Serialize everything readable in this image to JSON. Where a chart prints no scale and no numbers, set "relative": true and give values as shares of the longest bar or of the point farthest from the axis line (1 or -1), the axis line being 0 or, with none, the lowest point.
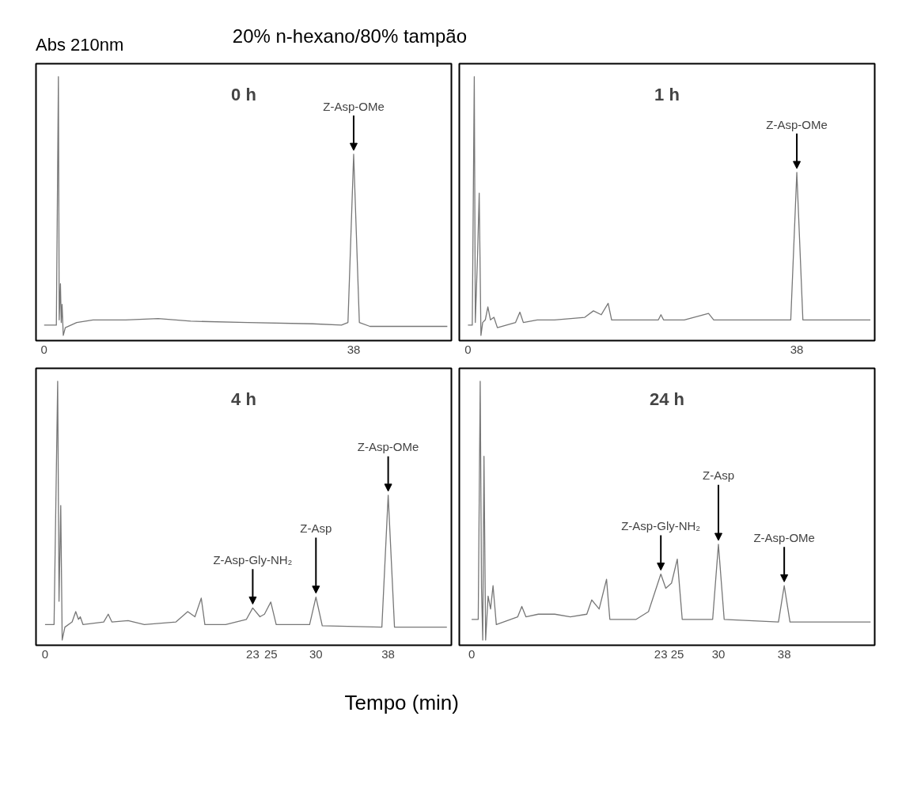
{
  "chart_data": [
    {
      "type": "line",
      "title": "0 h",
      "subtitle": "20% n-hexano/80% tampão",
      "ylabel": "Abs 210nm",
      "relative": true,
      "tick_labels": "x",
      "grid": false,
      "xlim": [
        -1,
        50
      ],
      "xticks": [
        0,
        38
      ],
      "color": "#777777",
      "x": [
        0,
        1.5,
        1.75,
        1.85,
        2.0,
        2.1,
        2.2,
        2.35,
        2.6,
        4,
        6,
        10,
        14,
        18,
        25,
        33,
        36.5,
        37.3,
        38,
        38.7,
        40,
        45,
        49.5
      ],
      "values": [
        0.04,
        0.04,
        1.0,
        0.06,
        0.2,
        0.05,
        0.12,
        0.0,
        0.03,
        0.05,
        0.06,
        0.06,
        0.065,
        0.055,
        0.05,
        0.045,
        0.04,
        0.05,
        0.7,
        0.05,
        0.035,
        0.035,
        0.035
      ],
      "annotations": [
        {
          "text": "Z-Asp-OMe",
          "x": 38,
          "y": 0.7
        }
      ]
    },
    {
      "type": "line",
      "title": "1 h",
      "relative": true,
      "tick_labels": "x",
      "grid": false,
      "xlim": [
        -1,
        47
      ],
      "xticks": [
        0,
        38
      ],
      "color": "#777777",
      "x": [
        0,
        0.5,
        0.73,
        0.85,
        1.1,
        1.3,
        1.5,
        1.7,
        2.0,
        2.3,
        2.6,
        3.0,
        3.4,
        5.5,
        6.0,
        6.4,
        8,
        10,
        13.5,
        14.5,
        15.4,
        16.2,
        16.6,
        19,
        22.0,
        22.3,
        22.6,
        25,
        27.8,
        28.4,
        33,
        37.3,
        38,
        38.7,
        41,
        46.5
      ],
      "values": [
        0.04,
        0.04,
        1.0,
        0.05,
        0.3,
        0.55,
        0.0,
        0.05,
        0.06,
        0.11,
        0.06,
        0.07,
        0.03,
        0.05,
        0.09,
        0.05,
        0.06,
        0.06,
        0.07,
        0.095,
        0.08,
        0.124,
        0.06,
        0.06,
        0.06,
        0.08,
        0.06,
        0.06,
        0.085,
        0.06,
        0.06,
        0.06,
        0.63,
        0.06,
        0.06,
        0.06
      ],
      "annotations": [
        {
          "text": "Z-Asp-OMe",
          "x": 38,
          "y": 0.63
        }
      ]
    },
    {
      "type": "line",
      "title": "4 h",
      "xlabel": "Tempo (min)",
      "relative": true,
      "tick_labels": "x",
      "grid": false,
      "xlim": [
        -1,
        45
      ],
      "xticks": [
        0,
        23,
        25,
        30,
        38
      ],
      "color": "#777777",
      "x": [
        0,
        1.0,
        1.4,
        1.55,
        1.74,
        1.9,
        2.2,
        3.0,
        3.4,
        3.7,
        3.9,
        4.2,
        6.5,
        7.0,
        7.4,
        9.2,
        11,
        14.5,
        15.8,
        16.6,
        17.3,
        17.7,
        20,
        22.3,
        23,
        23.8,
        24.3,
        25,
        25.6,
        29.3,
        30,
        30.7,
        37.3,
        38,
        38.7,
        44.5
      ],
      "values": [
        0.06,
        0.06,
        1.0,
        0.15,
        0.52,
        0.0,
        0.05,
        0.07,
        0.11,
        0.08,
        0.09,
        0.06,
        0.07,
        0.1,
        0.07,
        0.075,
        0.06,
        0.07,
        0.11,
        0.09,
        0.162,
        0.06,
        0.06,
        0.08,
        0.124,
        0.09,
        0.1,
        0.147,
        0.06,
        0.06,
        0.166,
        0.055,
        0.05,
        0.56,
        0.05,
        0.05
      ],
      "annotations": [
        {
          "text": "Z-Asp-Gly-NH₂",
          "x": 23,
          "y": 0.124
        },
        {
          "text": "Z-Asp",
          "x": 30,
          "y": 0.166
        },
        {
          "text": "Z-Asp-OMe",
          "x": 38,
          "y": 0.56
        }
      ]
    },
    {
      "type": "line",
      "title": "24 h",
      "relative": true,
      "tick_labels": "x",
      "grid": false,
      "xlim": [
        -1.5,
        49
      ],
      "xticks": [
        0,
        23,
        25,
        30,
        38
      ],
      "color": "#777777",
      "x": [
        0,
        0.8,
        1.04,
        1.2,
        1.35,
        1.5,
        1.7,
        2.0,
        2.3,
        2.6,
        3.0,
        5.6,
        6.1,
        6.6,
        8.1,
        10.1,
        12,
        14.0,
        14.6,
        15.5,
        16.4,
        16.8,
        20,
        21.5,
        23,
        23.6,
        24.3,
        25,
        25.6,
        29.3,
        30,
        30.7,
        37.3,
        38,
        38.7,
        48.5
      ],
      "values": [
        0.08,
        0.08,
        1.0,
        0.2,
        0.0,
        0.71,
        0.0,
        0.17,
        0.12,
        0.21,
        0.06,
        0.09,
        0.13,
        0.09,
        0.1,
        0.1,
        0.09,
        0.1,
        0.155,
        0.12,
        0.235,
        0.08,
        0.08,
        0.11,
        0.255,
        0.2,
        0.22,
        0.313,
        0.08,
        0.08,
        0.37,
        0.08,
        0.07,
        0.21,
        0.07,
        0.07
      ],
      "annotations": [
        {
          "text": "Z-Asp-Gly-NH₂",
          "x": 23,
          "y": 0.255
        },
        {
          "text": "Z-Asp",
          "x": 30,
          "y": 0.37
        },
        {
          "text": "Z-Asp-OMe",
          "x": 38,
          "y": 0.21
        }
      ]
    }
  ]
}
